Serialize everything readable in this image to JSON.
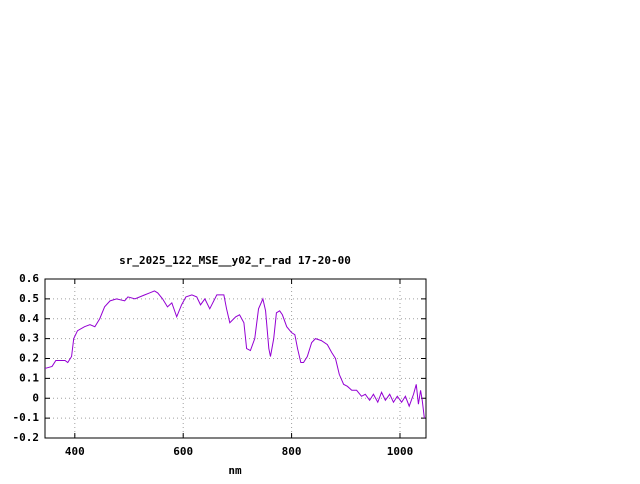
{
  "chart_data": {
    "type": "line",
    "title": "sr_2025_122_MSE__y02_r_rad 17-20-00",
    "xlabel": "nm",
    "x": [
      345,
      358,
      365,
      382,
      387,
      394,
      398,
      405,
      418,
      428,
      437,
      446,
      455,
      465,
      477,
      492,
      498,
      511,
      520,
      529,
      538,
      547,
      553,
      562,
      571,
      579,
      588,
      597,
      605,
      616,
      625,
      632,
      640,
      649,
      662,
      675,
      680,
      686,
      697,
      704,
      712,
      717,
      724,
      732,
      739,
      747,
      752,
      758,
      761,
      767,
      772,
      778,
      783,
      791,
      800,
      806,
      811,
      817,
      822,
      829,
      837,
      844,
      855,
      866,
      874,
      881,
      888,
      896,
      903,
      911,
      920,
      929,
      936,
      944,
      951,
      959,
      966,
      973,
      981,
      988,
      995,
      1003,
      1010,
      1017,
      1025,
      1030,
      1034,
      1038,
      1041,
      1045
    ],
    "series": [
      {
        "name": "sr_2025_122_MSE__y02_r_rad 17-20-00",
        "color": "#9400d3",
        "values": [
          0.15,
          0.16,
          0.19,
          0.19,
          0.18,
          0.21,
          0.3,
          0.34,
          0.36,
          0.37,
          0.36,
          0.4,
          0.46,
          0.49,
          0.5,
          0.49,
          0.51,
          0.5,
          0.51,
          0.52,
          0.53,
          0.54,
          0.53,
          0.5,
          0.46,
          0.48,
          0.41,
          0.47,
          0.51,
          0.52,
          0.51,
          0.47,
          0.5,
          0.45,
          0.52,
          0.52,
          0.45,
          0.38,
          0.41,
          0.42,
          0.38,
          0.25,
          0.24,
          0.3,
          0.45,
          0.5,
          0.44,
          0.25,
          0.21,
          0.3,
          0.43,
          0.44,
          0.42,
          0.36,
          0.33,
          0.32,
          0.25,
          0.18,
          0.18,
          0.21,
          0.28,
          0.3,
          0.29,
          0.27,
          0.23,
          0.2,
          0.12,
          0.07,
          0.06,
          0.04,
          0.04,
          0.01,
          0.02,
          -0.01,
          0.02,
          -0.02,
          0.03,
          -0.01,
          0.02,
          -0.02,
          0.01,
          -0.02,
          0.01,
          -0.04,
          0.02,
          0.07,
          -0.03,
          0.04,
          -0.01,
          -0.1
        ]
      }
    ],
    "xlim": [
      345,
      1048
    ],
    "ylim": [
      -0.2,
      0.6
    ],
    "xticks": [
      400,
      600,
      800,
      1000
    ],
    "yticks": [
      -0.2,
      -0.1,
      0,
      0.1,
      0.2,
      0.3,
      0.4,
      0.5,
      0.6
    ],
    "grid": true
  }
}
